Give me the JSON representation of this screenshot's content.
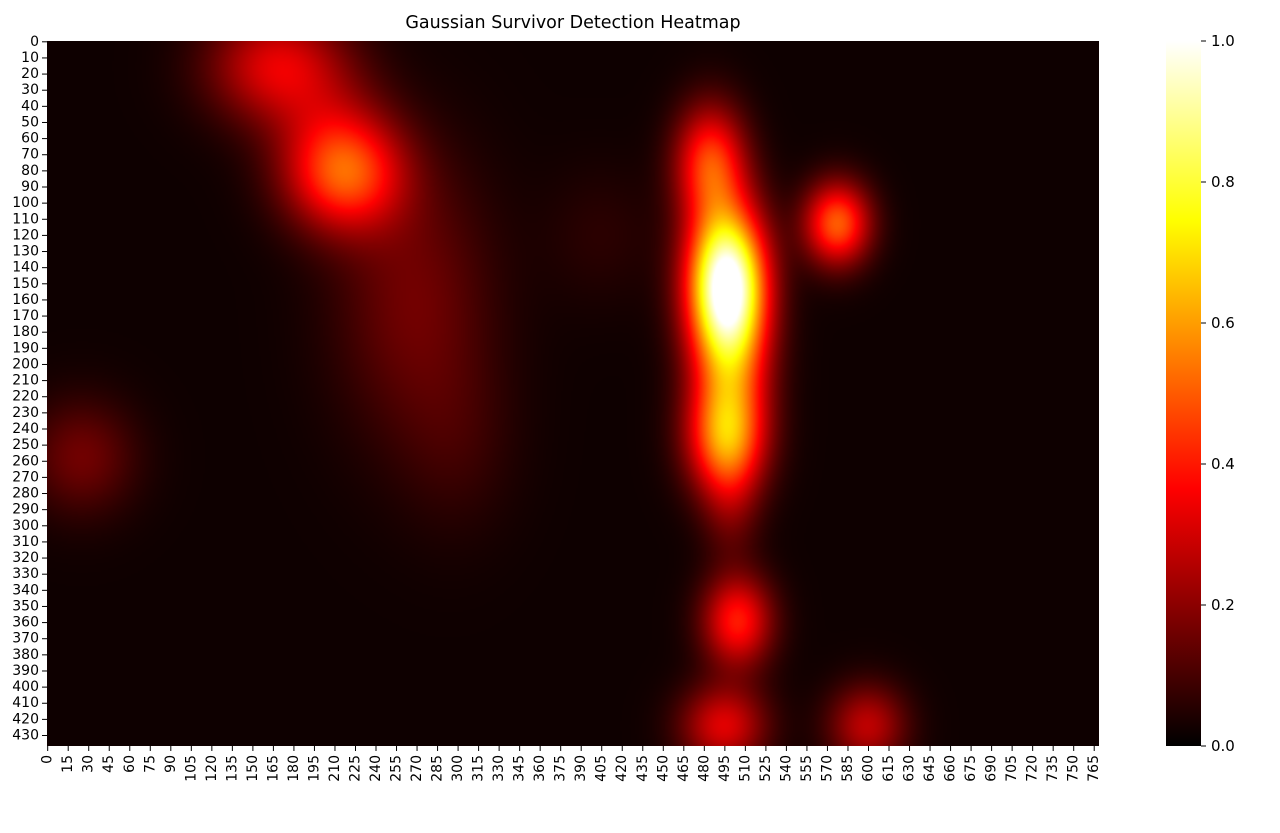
{
  "chart_data": {
    "type": "heatmap",
    "title": "Gaussian Survivor Detection Heatmap",
    "xlabel": "",
    "ylabel": "",
    "colormap": "hot",
    "x_ticks": [
      0,
      15,
      30,
      45,
      60,
      75,
      90,
      105,
      120,
      135,
      150,
      165,
      180,
      195,
      210,
      225,
      240,
      255,
      270,
      285,
      300,
      315,
      330,
      345,
      360,
      375,
      390,
      405,
      420,
      435,
      450,
      465,
      480,
      495,
      510,
      525,
      540,
      555,
      570,
      585,
      600,
      615,
      630,
      645,
      660,
      675,
      690,
      705,
      720,
      735,
      750,
      765
    ],
    "y_ticks": [
      0,
      10,
      20,
      30,
      40,
      50,
      60,
      70,
      80,
      90,
      100,
      110,
      120,
      130,
      140,
      150,
      160,
      170,
      180,
      190,
      200,
      210,
      220,
      230,
      240,
      250,
      260,
      270,
      280,
      290,
      300,
      310,
      320,
      330,
      340,
      350,
      360,
      370,
      380,
      390,
      400,
      410,
      420,
      430
    ],
    "xlim": [
      0,
      769
    ],
    "ylim": [
      0,
      437
    ],
    "colorbar": {
      "ticks": [
        "0.0",
        "0.2",
        "0.4",
        "0.6",
        "0.8",
        "1.0"
      ],
      "range": [
        0,
        1
      ]
    },
    "hotspots": [
      {
        "x": 168,
        "y": 15,
        "sx": 35,
        "sy": 25,
        "intensity": 0.3
      },
      {
        "x": 218,
        "y": 82,
        "sx": 30,
        "sy": 25,
        "intensity": 0.42
      },
      {
        "x": 205,
        "y": 55,
        "sx": 30,
        "sy": 30,
        "intensity": 0.1
      },
      {
        "x": 268,
        "y": 160,
        "sx": 40,
        "sy": 60,
        "intensity": 0.14
      },
      {
        "x": 300,
        "y": 250,
        "sx": 30,
        "sy": 40,
        "intensity": 0.05
      },
      {
        "x": 25,
        "y": 258,
        "sx": 28,
        "sy": 25,
        "intensity": 0.14
      },
      {
        "x": 485,
        "y": 75,
        "sx": 18,
        "sy": 25,
        "intensity": 0.42
      },
      {
        "x": 497,
        "y": 148,
        "sx": 20,
        "sy": 32,
        "intensity": 1.0
      },
      {
        "x": 500,
        "y": 195,
        "sx": 20,
        "sy": 30,
        "intensity": 0.35
      },
      {
        "x": 497,
        "y": 245,
        "sx": 20,
        "sy": 25,
        "intensity": 0.55
      },
      {
        "x": 500,
        "y": 288,
        "sx": 15,
        "sy": 25,
        "intensity": 0.12
      },
      {
        "x": 505,
        "y": 360,
        "sx": 18,
        "sy": 20,
        "intensity": 0.38
      },
      {
        "x": 495,
        "y": 425,
        "sx": 22,
        "sy": 18,
        "intensity": 0.3
      },
      {
        "x": 578,
        "y": 113,
        "sx": 17,
        "sy": 18,
        "intensity": 0.48
      },
      {
        "x": 600,
        "y": 425,
        "sx": 20,
        "sy": 18,
        "intensity": 0.25
      },
      {
        "x": 405,
        "y": 120,
        "sx": 30,
        "sy": 30,
        "intensity": 0.04
      }
    ]
  }
}
